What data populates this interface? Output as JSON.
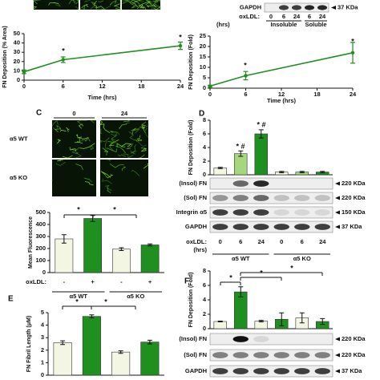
{
  "chart_data": [
    {
      "type": "line",
      "ylabel": "FN Deposition (% Area)",
      "xlabel": "Time (hrs)",
      "x": [
        0,
        6,
        24
      ],
      "series": [
        {
          "color": "#1f8f1f",
          "values": [
            9,
            22,
            37
          ],
          "errors": [
            2,
            3,
            4
          ]
        }
      ],
      "xlim": [
        0,
        24
      ],
      "xticks": [
        0,
        6,
        12,
        18,
        24
      ],
      "ylim": [
        0,
        50
      ],
      "yticks": [
        0,
        10,
        20,
        30,
        40,
        50
      ],
      "annotations": [
        "*",
        "*"
      ]
    },
    {
      "type": "line",
      "ylabel": "FN Deposition (Fold)",
      "xlabel": "Time (hrs)",
      "blots": [
        {
          "label": "GAPDH",
          "size": "37 KDa"
        }
      ],
      "treatment_label": "oxLDL:",
      "doses": [
        "0",
        "6",
        "24",
        "6",
        "24"
      ],
      "dose_unit": "(hrs)",
      "groups": [
        "Insoluble",
        "Soluble"
      ],
      "x": [
        0,
        6,
        24
      ],
      "series": [
        {
          "color": "#1f8f1f",
          "values": [
            1,
            6,
            17
          ],
          "errors": [
            0.4,
            2,
            5
          ]
        }
      ],
      "xlim": [
        0,
        24
      ],
      "xticks": [
        0,
        6,
        12,
        18,
        24
      ],
      "ylim": [
        0,
        25
      ],
      "yticks": [
        0,
        5,
        10,
        15,
        20,
        25
      ],
      "annotations": [
        "*",
        "*"
      ]
    },
    {
      "type": "bar",
      "panel": "C",
      "image_columns": [
        "0",
        "24"
      ],
      "image_rows": [
        "α5 WT",
        "α5 KO"
      ],
      "ylabel": "Mean Fluorescence",
      "treatment_label": "oxLDL:",
      "categories": [
        "-",
        "+",
        "-",
        "+"
      ],
      "groups": [
        "α5 WT",
        "α5 KO"
      ],
      "values": [
        280,
        450,
        195,
        230
      ],
      "errors": [
        35,
        25,
        12,
        8
      ],
      "colors": [
        "#f4f6e4",
        "#1f8f1f",
        "#f4f6e4",
        "#1f8f1f"
      ],
      "ylim": [
        0,
        500
      ],
      "yticks": [
        0,
        100,
        200,
        300,
        400,
        500
      ],
      "annotations": [
        "*",
        "*"
      ]
    },
    {
      "type": "bar",
      "panel": "D",
      "ylabel": "FN Deposition (Fold)",
      "blots": [
        {
          "label": "(Insol) FN",
          "size": "220 KDa"
        },
        {
          "label": "(Sol) FN",
          "size": "220 KDa"
        },
        {
          "label": "Integrin α5",
          "size": "150 KDa"
        },
        {
          "label": "GAPDH",
          "size": "37 KDa"
        }
      ],
      "treatment_label": "oxLDL:",
      "categories": [
        "0",
        "6",
        "24",
        "0",
        "6",
        "24"
      ],
      "dose_unit": "(hrs)",
      "groups": [
        "α5 WT",
        "α5 KO"
      ],
      "values": [
        1,
        3.1,
        6,
        0.4,
        0.4,
        0.4
      ],
      "errors": [
        0.1,
        0.4,
        0.6,
        0.1,
        0.1,
        0.1
      ],
      "colors": [
        "#f4f6e4",
        "#a6d77e",
        "#1f8f1f",
        "#f4f6e4",
        "#a6d77e",
        "#1f8f1f"
      ],
      "ylim": [
        0,
        8
      ],
      "yticks": [
        0,
        2,
        4,
        6,
        8
      ],
      "annotations": [
        "* #",
        "* #"
      ]
    },
    {
      "type": "bar",
      "panel": "E",
      "ylabel": "FN Fibril Length (μM)",
      "values": [
        2.6,
        4.7,
        1.85,
        2.65
      ],
      "errors": [
        0.15,
        0.12,
        0.1,
        0.15
      ],
      "colors": [
        "#f4f6e4",
        "#1f8f1f",
        "#f4f6e4",
        "#1f8f1f"
      ],
      "ylim": [
        0,
        5
      ],
      "yticks": [
        0,
        1,
        2,
        3,
        4,
        5
      ],
      "annotations": [
        "*",
        "*"
      ]
    },
    {
      "type": "bar",
      "panel": "F",
      "ylabel": "FN Deposition (Fold)",
      "blots": [
        {
          "label": "(Insol) FN",
          "size": "220 KDa"
        },
        {
          "label": "(Sol) FN",
          "size": "220 KDa"
        },
        {
          "label": "GAPDH",
          "size": "37 KDa"
        }
      ],
      "values": [
        1,
        5.1,
        1.05,
        1.3,
        1.5,
        1.0
      ],
      "errors": [
        0.05,
        0.7,
        0.1,
        0.9,
        0.7,
        0.4
      ],
      "colors": [
        "#f4f6e4",
        "#1f8f1f",
        "#f4f6e4",
        "#1f8f1f",
        "#f4f6e4",
        "#1f8f1f"
      ],
      "ylim": [
        0,
        8
      ],
      "yticks": [
        0,
        2,
        4,
        6,
        8
      ],
      "annotations": [
        "*",
        "*",
        "*"
      ]
    }
  ]
}
